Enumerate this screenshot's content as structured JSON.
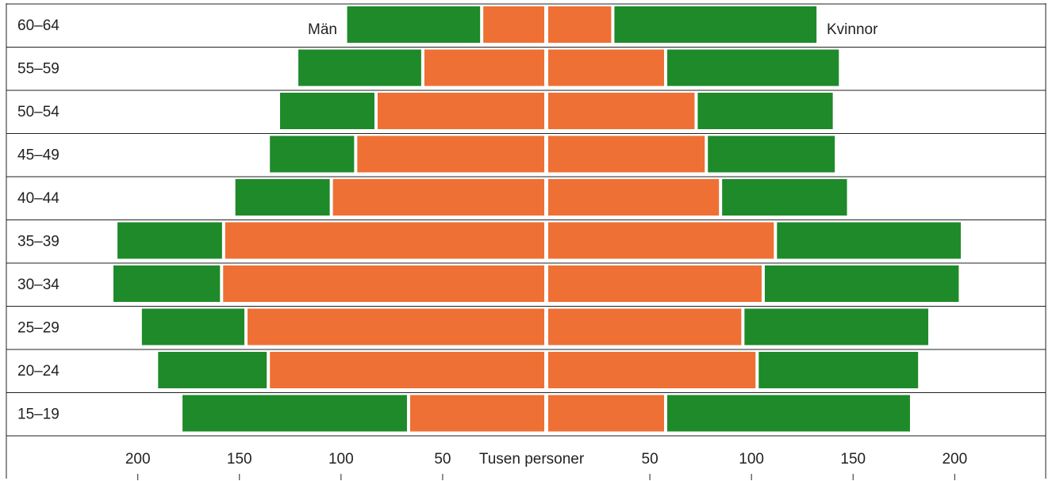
{
  "chart_data": {
    "type": "pyramid",
    "left_label": "Män",
    "right_label": "Kvinnor",
    "xlabel": "Tusen personer",
    "categories": [
      "60–64",
      "55–59",
      "50–54",
      "45–49",
      "40–44",
      "35–39",
      "30–34",
      "25–29",
      "20–24",
      "15–19"
    ],
    "series": [
      {
        "side": "left",
        "color": "#ee7035",
        "values": [
          30,
          59,
          82,
          92,
          104,
          157,
          158,
          146,
          135,
          66
        ]
      },
      {
        "side": "left",
        "color": "#1e8a2a",
        "values": [
          67,
          62,
          48,
          43,
          48,
          53,
          54,
          52,
          55,
          112
        ]
      },
      {
        "side": "right",
        "color": "#ee7035",
        "values": [
          31,
          57,
          72,
          77,
          84,
          111,
          105,
          95,
          102,
          57
        ]
      },
      {
        "side": "right",
        "color": "#1e8a2a",
        "values": [
          101,
          86,
          68,
          64,
          63,
          92,
          97,
          92,
          80,
          121
        ]
      }
    ],
    "xlim": [
      0,
      260
    ],
    "xticks": [
      50,
      100,
      150,
      200
    ]
  }
}
